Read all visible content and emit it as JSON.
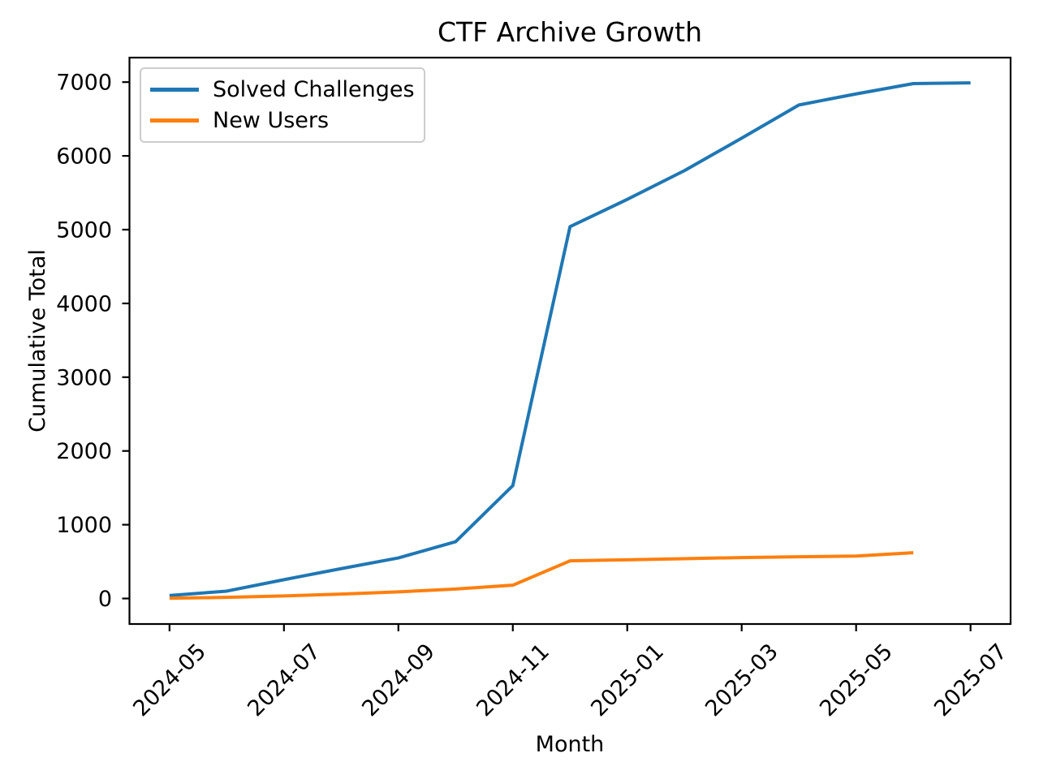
{
  "chart_data": {
    "type": "line",
    "title": "CTF Archive Growth",
    "xlabel": "Month",
    "ylabel": "Cumulative Total",
    "grid": false,
    "legend_position": "upper left",
    "months": [
      "2024-05",
      "2024-06",
      "2024-07",
      "2024-08",
      "2024-09",
      "2024-10",
      "2024-11",
      "2024-12",
      "2025-01",
      "2025-02",
      "2025-03",
      "2025-04",
      "2025-05",
      "2025-06",
      "2025-07"
    ],
    "x_tick_labels": [
      "2024-05",
      "2024-07",
      "2024-09",
      "2024-11",
      "2025-01",
      "2025-03",
      "2025-05",
      "2025-07"
    ],
    "y_tick_values": [
      0,
      1000,
      2000,
      3000,
      4000,
      5000,
      6000,
      7000
    ],
    "y_tick_labels": [
      "0",
      "1000",
      "2000",
      "3000",
      "4000",
      "5000",
      "6000",
      "7000"
    ],
    "ylim": [
      -346,
      7332
    ],
    "xlim_month_offset": [
      -0.7,
      14.7
    ],
    "series": [
      {
        "name": "Solved Challenges",
        "color": "#1f77b4",
        "x": [
          "2024-05",
          "2024-06",
          "2024-07",
          "2024-08",
          "2024-09",
          "2024-10",
          "2024-11",
          "2024-12",
          "2025-01",
          "2025-02",
          "2025-03",
          "2025-04",
          "2025-05",
          "2025-06",
          "2025-07"
        ],
        "values": [
          40,
          100,
          255,
          405,
          550,
          770,
          1530,
          5040,
          5410,
          5800,
          6240,
          6690,
          6840,
          6980,
          6990
        ]
      },
      {
        "name": "New Users",
        "color": "#ff7f0e",
        "x": [
          "2024-05",
          "2024-06",
          "2024-07",
          "2024-08",
          "2024-09",
          "2024-10",
          "2024-11",
          "2024-12",
          "2025-01",
          "2025-02",
          "2025-03",
          "2025-04",
          "2025-05",
          "2025-06"
        ],
        "values": [
          3,
          15,
          35,
          60,
          90,
          128,
          180,
          510,
          525,
          540,
          555,
          565,
          575,
          620
        ]
      }
    ],
    "axis_color": "#000000"
  }
}
